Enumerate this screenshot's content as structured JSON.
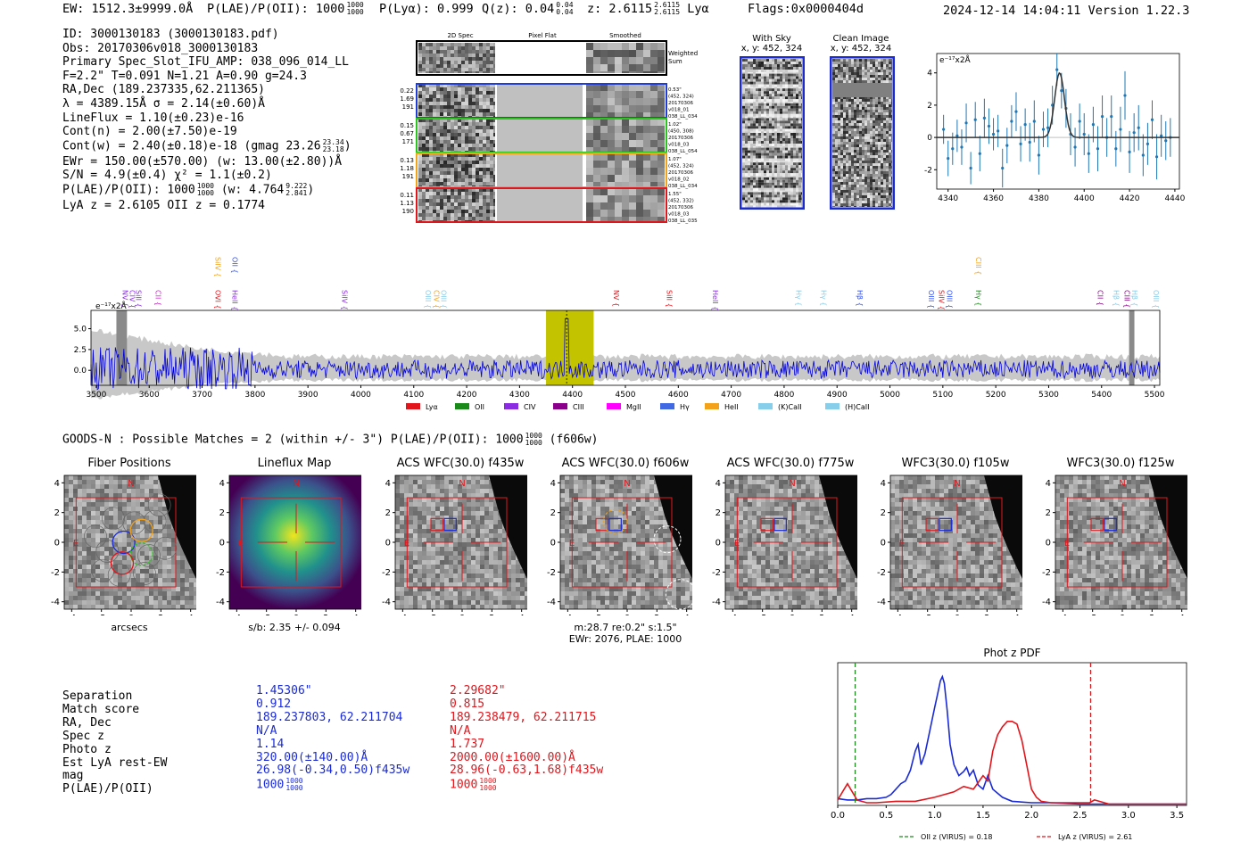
{
  "header": {
    "ew": "EW: 1512.3±9999.0Å",
    "plae_label": "P(LAE)/P(OII): 1000",
    "plae_up": "1000",
    "plae_dn": "1000",
    "plya": "P(Lyα): 0.999",
    "qz_label": "Q(z): 0.04",
    "qz_up": "0.04",
    "qz_dn": "0.04",
    "z_label": "z: 2.6115",
    "z_up": "2.6115",
    "z_dn": "2.6115",
    "z_line": "Lyα",
    "flags": "Flags:0x0000404d",
    "datetime": "2024-12-14 14:04:11",
    "version": "Version 1.22.3"
  },
  "info": {
    "id": "ID: 3000130183 (3000130183.pdf)",
    "obs": "Obs: 20170306v018_3000130183",
    "primary": "Primary Spec_Slot_IFU_AMP: 038_096_014_LL",
    "params": "F=2.2\"  T=0.091  N=1.21  A=0.90  g=24.3",
    "radec": "RA,Dec (189.237335,62.211365)",
    "lambda": "λ = 4389.15Å  σ = 2.14(±0.60)Å",
    "lineflux": "LineFlux = 1.10(±0.23)e-16",
    "contn": "Cont(n) = 2.00(±7.50)e-19",
    "contw": "Cont(w) = 2.40(±0.18)e-18 (gmag 23.26",
    "contw_up": "23.34",
    "contw_dn": "23.18",
    "ewr": "EWr = 150.00(±570.00) (w: 13.00(±2.80))Å",
    "sn": "S/N = 4.9(±0.4)  χ² = 1.1(±0.2)",
    "plae": "P(LAE)/P(OII): 1000",
    "plae_up": "1000",
    "plae_dn": "1000",
    "plae_w": "(w: 4.764",
    "plae_w_up": "9.222",
    "plae_w_dn": "2.841",
    "lyaz": "LyA z = 2.6105   OII z = 0.1774"
  },
  "spec2d": {
    "columns": [
      "2D Spec",
      "Pixel Flat",
      "Smoothed"
    ],
    "weighted_sum": "Weighted Sum",
    "rows": [
      {
        "stats": [
          "0.22",
          "1.69",
          "191"
        ],
        "meta": [
          "0.53\"",
          "(452, 324)",
          "20170306",
          "v018_01",
          "038_LL_034"
        ],
        "color": "#1f3bd8"
      },
      {
        "stats": [
          "0.15",
          "0.67",
          "171"
        ],
        "meta": [
          "1.02\"",
          "(450, 308)",
          "20170306",
          "v018_03",
          "038_LL_054"
        ],
        "color": "#2ac41e"
      },
      {
        "stats": [
          "0.13",
          "1.18",
          "191"
        ],
        "meta": [
          "1.07\"",
          "(452, 324)",
          "20170306",
          "v018_02",
          "038_LL_034"
        ],
        "color": "#f2a21b"
      },
      {
        "stats": [
          "0.11",
          "1.13",
          "190"
        ],
        "meta": [
          "1.55\"",
          "(452, 332)",
          "20170306",
          "v018_03",
          "038_LL_035"
        ],
        "color": "#e0161c"
      }
    ]
  },
  "cutouts": {
    "with_sky": {
      "title": "With Sky",
      "coords": "x, y: 452, 324"
    },
    "clean": {
      "title": "Clean Image",
      "coords": "x, y: 452, 324"
    }
  },
  "zoom_plot": {
    "ylabel": "e⁻¹⁷x2Å",
    "chart_data": {
      "type": "line",
      "title": "",
      "x_ticks": [
        4340,
        4360,
        4380,
        4400,
        4420,
        4440
      ],
      "y_ticks": [
        -2,
        0,
        2,
        4
      ],
      "xlim": [
        4335,
        4442
      ],
      "ylim": [
        -3.2,
        5.2
      ],
      "model_peak": 4.0,
      "model_center": 4389.15,
      "model_sigma": 2.14,
      "points_x": [
        4338,
        4340,
        4342,
        4344,
        4346,
        4348,
        4350,
        4352,
        4354,
        4356,
        4358,
        4360,
        4362,
        4364,
        4366,
        4368,
        4370,
        4372,
        4374,
        4376,
        4378,
        4380,
        4382,
        4384,
        4386,
        4388,
        4390,
        4392,
        4394,
        4396,
        4398,
        4400,
        4402,
        4404,
        4406,
        4408,
        4410,
        4412,
        4414,
        4416,
        4418,
        4420,
        4422,
        4424,
        4426,
        4428,
        4430,
        4432,
        4434,
        4436,
        4438
      ],
      "points_y": [
        0.5,
        -1.3,
        -0.7,
        0.1,
        -0.6,
        0.9,
        -1.9,
        1.1,
        -1.0,
        1.2,
        0.7,
        0.2,
        0.4,
        -1.9,
        -0.5,
        1.0,
        1.6,
        -0.4,
        0.8,
        -0.3,
        1.0,
        -1.1,
        0.5,
        0.6,
        2.0,
        4.2,
        2.9,
        1.8,
        0.2,
        -0.6,
        1.0,
        0.2,
        -1.0,
        0.8,
        -0.7,
        1.3,
        0.0,
        1.3,
        -0.7,
        0.5,
        2.6,
        -0.9,
        0.3,
        0.6,
        -1.1,
        -0.4,
        1.1,
        -1.2,
        0.1,
        -0.2,
        0.0
      ],
      "points_err": [
        0.9,
        1.1,
        1.0,
        1.0,
        1.1,
        1.2,
        1.0,
        1.1,
        1.1,
        1.2,
        1.1,
        1.0,
        1.0,
        1.2,
        1.1,
        1.0,
        1.2,
        1.1,
        1.0,
        1.2,
        1.3,
        1.2,
        1.1,
        1.2,
        1.2,
        1.0,
        1.1,
        1.2,
        1.3,
        1.2,
        1.1,
        1.3,
        1.2,
        1.1,
        1.4,
        1.3,
        1.2,
        1.3,
        1.1,
        1.4,
        1.5,
        1.3,
        1.2,
        1.4,
        1.3,
        1.3,
        1.2,
        1.4,
        1.3,
        1.2,
        1.2
      ]
    }
  },
  "full_spectrum": {
    "ylabel": "e⁻¹⁷x2Å",
    "lines_top": [
      {
        "label": "NV",
        "w": 3550,
        "color": "#8a2be2",
        "row": 0
      },
      {
        "label": "CIV",
        "w": 3563,
        "color": "#8a2be2",
        "row": 0
      },
      {
        "label": "SiII",
        "w": 3575,
        "color": "#8a2be2",
        "row": 0
      },
      {
        "label": "CII",
        "w": 3612,
        "color": "#d020d0",
        "row": 0
      },
      {
        "label": "OVI",
        "w": 3725,
        "color": "#e0161c",
        "row": 0
      },
      {
        "label": "SiIV",
        "w": 3725,
        "color": "#f2a21b",
        "row": 1
      },
      {
        "label": "HeII",
        "w": 3757,
        "color": "#8a2be2",
        "row": 0
      },
      {
        "label": "OII",
        "w": 3757,
        "color": "#3050f0",
        "row": 1
      },
      {
        "label": "SiIV",
        "w": 3965,
        "color": "#8a2be2",
        "row": 0
      },
      {
        "label": "OIII",
        "w": 4122,
        "color": "#87ceeb",
        "row": 0
      },
      {
        "label": "CIV",
        "w": 4138,
        "color": "#f2a21b",
        "row": 0
      },
      {
        "label": "OIII",
        "w": 4152,
        "color": "#87ceeb",
        "row": 0
      },
      {
        "label": "NV",
        "w": 4478,
        "color": "#e0161c",
        "row": 0
      },
      {
        "label": "SiII",
        "w": 4578,
        "color": "#e0161c",
        "row": 0
      },
      {
        "label": "HeII",
        "w": 4665,
        "color": "#8a2be2",
        "row": 0
      },
      {
        "label": "Hγ",
        "w": 4823,
        "color": "#87ceeb",
        "row": 0
      },
      {
        "label": "Hγ",
        "w": 4870,
        "color": "#87ceeb",
        "row": 0
      },
      {
        "label": "Hβ",
        "w": 4938,
        "color": "#3050f0",
        "row": 0
      },
      {
        "label": "OIII",
        "w": 5073,
        "color": "#3050f0",
        "row": 0
      },
      {
        "label": "SiIV",
        "w": 5093,
        "color": "#e0161c",
        "row": 0
      },
      {
        "label": "OIII",
        "w": 5108,
        "color": "#3050f0",
        "row": 0
      },
      {
        "label": "Hγ",
        "w": 5163,
        "color": "#1a8a1a",
        "row": 0
      },
      {
        "label": "CIII",
        "w": 5163,
        "color": "#f2a21b",
        "row": 1
      },
      {
        "label": "CII",
        "w": 5393,
        "color": "#8b008b",
        "row": 0
      },
      {
        "label": "Hβ",
        "w": 5423,
        "color": "#87ceeb",
        "row": 0
      },
      {
        "label": "CIII",
        "w": 5443,
        "color": "#8b008b",
        "row": 0
      },
      {
        "label": "Hβ",
        "w": 5458,
        "color": "#87ceeb",
        "row": 0
      },
      {
        "label": "OIII",
        "w": 5498,
        "color": "#87ceeb",
        "row": 0
      }
    ],
    "legend": [
      {
        "label": "Lyα",
        "color": "#e0161c"
      },
      {
        "label": "OII",
        "color": "#1a8a1a"
      },
      {
        "label": "CIV",
        "color": "#8a2be2"
      },
      {
        "label": "CIII",
        "color": "#8b008b"
      },
      {
        "label": "MgII",
        "color": "#ff00ff"
      },
      {
        "label": "Hγ",
        "color": "#4169e1"
      },
      {
        "label": "HeII",
        "color": "#f2a21b"
      },
      {
        "label": "(K)CaII",
        "color": "#87ceeb"
      },
      {
        "label": "(H)CaII",
        "color": "#87ceeb"
      }
    ],
    "chart_data": {
      "type": "line",
      "xlim": [
        3490,
        5510
      ],
      "ylim": [
        -1.8,
        7.2
      ],
      "x_ticks": [
        3500,
        3600,
        3700,
        3800,
        3900,
        4000,
        4100,
        4200,
        4300,
        4400,
        4500,
        4600,
        4700,
        4800,
        4900,
        5000,
        5100,
        5200,
        5300,
        5400,
        5500
      ],
      "y_ticks": [
        0.0,
        2.5,
        5.0
      ],
      "highlight_band": [
        4350,
        4440
      ],
      "emission_line": 4389,
      "masked_regions": [
        [
          3538,
          3558
        ],
        [
          5452,
          5462
        ]
      ]
    }
  },
  "imaging": {
    "catalog_line": "GOODS-N : Possible Matches = 2 (within +/- 3\")",
    "plae_label": "P(LAE)/P(OII): 1000",
    "plae_up": "1000",
    "plae_dn": "1000",
    "plae_filter": "(f606w)",
    "panels": [
      {
        "title": "Fiber Positions",
        "xlabel": "arcsecs",
        "sub": ""
      },
      {
        "title": "Lineflux Map",
        "xlabel": "s/b: 2.35 +/- 0.094",
        "sub": ""
      },
      {
        "title": "ACS WFC(30.0) f435w",
        "xlabel": "",
        "sub": ""
      },
      {
        "title": "ACS WFC(30.0) f606w",
        "xlabel": "m:28.7  re:0.2\"  s:1.5\"",
        "sub": "EWr: 2076, PLAE: 1000"
      },
      {
        "title": "ACS WFC(30.0) f775w",
        "xlabel": "",
        "sub": ""
      },
      {
        "title": "WFC3(30.0) f105w",
        "xlabel": "",
        "sub": ""
      },
      {
        "title": "WFC3(30.0) f125w",
        "xlabel": "",
        "sub": ""
      }
    ],
    "ticks": [
      "-4",
      "-2",
      "0",
      "2",
      "4"
    ],
    "y_ticks": [
      "4",
      "2",
      "0",
      "-2",
      "-4"
    ],
    "compass_n": "N",
    "compass_e": "E"
  },
  "matches": {
    "labels": [
      "Separation",
      "Match score",
      "RA, Dec",
      "Spec z",
      "Photo z",
      "Est LyA rest-EW",
      "mag",
      "P(LAE)/P(OII)"
    ],
    "blue": [
      "1.45306\"",
      "0.912",
      "189.237803, 62.211704",
      "N/A",
      "1.14",
      "320.00(±140.00)Å",
      "26.98(-0.34,0.50)f435w",
      "1000"
    ],
    "blue_plae_up": "1000",
    "blue_plae_dn": "1000",
    "red": [
      "2.29682\"",
      "0.815",
      "189.238479, 62.211715",
      "N/A",
      "1.737",
      "2000.00(±1600.00)Å",
      "28.96(-0.63,1.68)f435w",
      "1000"
    ],
    "red_plae_up": "1000",
    "red_plae_dn": "1000"
  },
  "photz": {
    "chart_data": {
      "type": "line",
      "title": "Phot z PDF",
      "xlim": [
        0.0,
        3.6
      ],
      "x_ticks": [
        "0.0",
        "0.5",
        "1.0",
        "1.5",
        "2.0",
        "2.5",
        "3.0",
        "3.5"
      ],
      "oii_z": 0.18,
      "lya_z": 2.61,
      "legend": [
        "OII z (VIRUS) = 0.18",
        "LyA z (VIRUS) = 2.61"
      ],
      "series": [
        {
          "name": "blue",
          "color": "#1a2bd6",
          "x": [
            0.0,
            0.1,
            0.2,
            0.3,
            0.4,
            0.5,
            0.55,
            0.6,
            0.65,
            0.7,
            0.75,
            0.8,
            0.83,
            0.86,
            0.9,
            0.95,
            1.0,
            1.03,
            1.06,
            1.08,
            1.1,
            1.13,
            1.16,
            1.2,
            1.25,
            1.3,
            1.33,
            1.36,
            1.4,
            1.45,
            1.5,
            1.55,
            1.6,
            1.7,
            1.8,
            2.0,
            2.2,
            2.5,
            3.0,
            3.6
          ],
          "y": [
            0.05,
            0.04,
            0.04,
            0.05,
            0.05,
            0.06,
            0.08,
            0.12,
            0.16,
            0.18,
            0.26,
            0.4,
            0.45,
            0.3,
            0.38,
            0.55,
            0.72,
            0.82,
            0.92,
            0.95,
            0.9,
            0.7,
            0.45,
            0.3,
            0.22,
            0.25,
            0.28,
            0.22,
            0.26,
            0.15,
            0.12,
            0.22,
            0.12,
            0.06,
            0.03,
            0.02,
            0.02,
            0.01,
            0.01,
            0.01
          ]
        },
        {
          "name": "red",
          "color": "#e0161c",
          "x": [
            0.0,
            0.05,
            0.1,
            0.15,
            0.2,
            0.3,
            0.4,
            0.6,
            0.8,
            1.0,
            1.2,
            1.3,
            1.4,
            1.5,
            1.55,
            1.6,
            1.65,
            1.7,
            1.75,
            1.8,
            1.85,
            1.9,
            1.95,
            2.0,
            2.05,
            2.1,
            2.2,
            2.4,
            2.6,
            2.65,
            2.8,
            3.0,
            3.6
          ],
          "y": [
            0.04,
            0.1,
            0.16,
            0.1,
            0.04,
            0.02,
            0.02,
            0.03,
            0.03,
            0.06,
            0.1,
            0.14,
            0.12,
            0.22,
            0.18,
            0.4,
            0.52,
            0.58,
            0.62,
            0.62,
            0.6,
            0.48,
            0.3,
            0.12,
            0.06,
            0.03,
            0.02,
            0.02,
            0.02,
            0.04,
            0.01,
            0.01,
            0.01
          ]
        }
      ]
    }
  }
}
